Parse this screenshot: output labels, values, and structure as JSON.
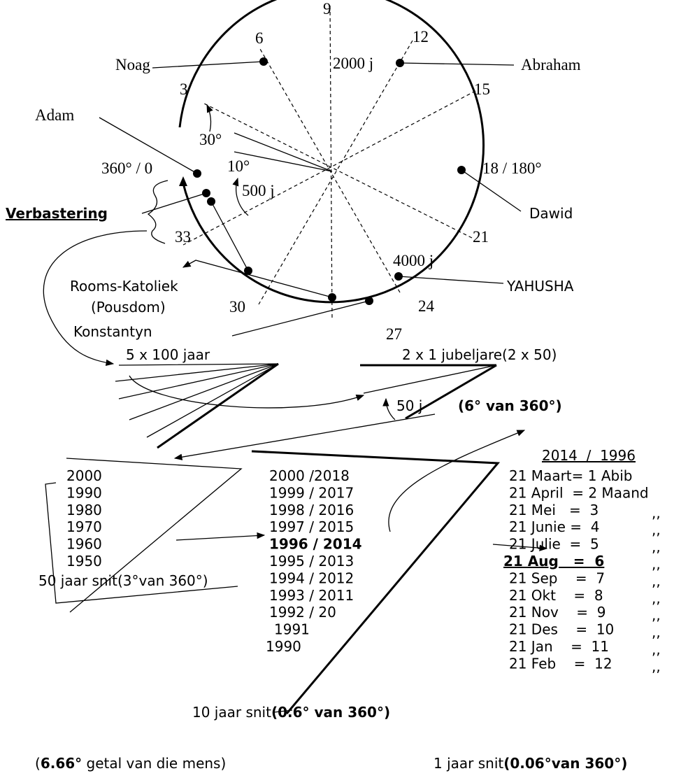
{
  "clock": {
    "labels": [
      "9",
      "12",
      "15",
      "18 / 180°",
      "21",
      "24",
      "27",
      "30",
      "33",
      "360° / 0",
      "3",
      "6"
    ],
    "markers": [
      "2000 j",
      "4000 j"
    ],
    "angles": [
      "30°",
      "10°",
      "500 j"
    ]
  },
  "people": {
    "noag": "Noag",
    "abraham": "Abraham",
    "adam": "Adam",
    "dawid": "Dawid",
    "verbastering": "Verbastering",
    "rooms": "Rooms-Katoliek",
    "pousdom": "(Pousdom)",
    "konstantyn": "Konstantyn",
    "yahusha": "YAHUSHA"
  },
  "periods": {
    "centuries": "5 x 100 jaar",
    "jubilees": "2 x 1 jubeljare(2 x 50)",
    "fifty": "50 j",
    "degrees": "(6° van 360°)"
  },
  "decades": {
    "years": [
      "2000",
      "1990",
      "1980",
      "1970",
      "1960",
      "1950"
    ],
    "caption": "50 jaar snit(3°van 360°)"
  },
  "years": {
    "rows": [
      "2000 /2018",
      "1999 / 2017",
      "1998 / 2016",
      "1997 / 2015",
      "1996 / 2014",
      "1995 / 2013",
      "1994 / 2012",
      "1993 / 2011",
      "1992 / 20",
      "1991",
      "1990"
    ],
    "caption": "10 jaar snit",
    "caption_bold": "(0.6° van 360°)"
  },
  "months": {
    "header": "2014  /  1996",
    "rows": [
      {
        "text": "21 Maart= 1 Abib"
      },
      {
        "text": "21 April  = 2 Maand"
      },
      {
        "text": "21 Mei   =  3",
        "ditto": ",,"
      },
      {
        "text": "21 Junie =  4",
        "ditto": ",,"
      },
      {
        "text": "21 Julie  =  5",
        "ditto": ",,"
      },
      {
        "text": "21 Aug   =  6",
        "ditto": ",,"
      },
      {
        "text": "21 Sep    =  7",
        "ditto": ",,"
      },
      {
        "text": "21 Okt    =  8",
        "ditto": ",,"
      },
      {
        "text": "21 Nov    =  9",
        "ditto": ",,"
      },
      {
        "text": "21 Des    =  10",
        "ditto": ",,"
      },
      {
        "text": "21 Jan    =  11",
        "ditto": ",,"
      },
      {
        "text": "21 Feb    =  12",
        "ditto": ",,"
      }
    ]
  },
  "footer": {
    "left_open": "(",
    "left_bold": "6.66°",
    "left_rest": " getal van die mens)",
    "right": "1 jaar snit",
    "right_bold": "(0.06°van 360°)"
  }
}
